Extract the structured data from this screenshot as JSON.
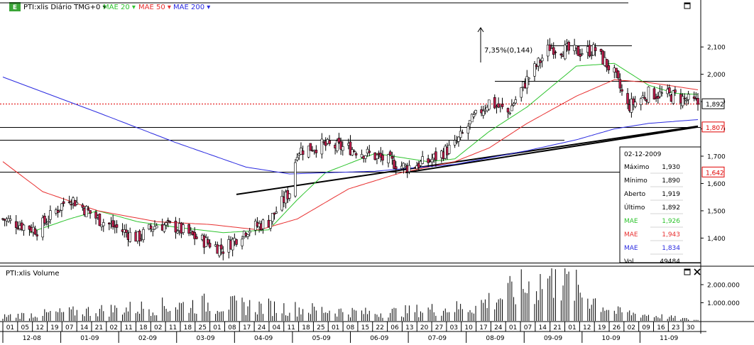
{
  "header": {
    "symbol_label": "PTI:xlis Diário TMG+0 ▾",
    "ma_labels": [
      {
        "text": "MAE 20 ▾",
        "color": "#2fc42f"
      },
      {
        "text": "MAE 50 ▾",
        "color": "#e83030"
      },
      {
        "text": "MAE 200 ▾",
        "color": "#2b2be0"
      }
    ]
  },
  "colors": {
    "candle_up": "#ffffff",
    "candle_down": "#c01c4c",
    "ma20": "#2fc42f",
    "ma50": "#e83030",
    "ma200": "#2b2be0",
    "last_price_line": "#e00000"
  },
  "price_axis": {
    "ticks": [
      "2,100",
      "2,000",
      "1,900",
      "1,800",
      "1,700",
      "1,600",
      "1,500",
      "1,400"
    ],
    "tick_values": [
      2.1,
      2.0,
      1.9,
      1.8,
      1.7,
      1.6,
      1.5,
      1.4
    ],
    "range": [
      1.31,
      2.22
    ],
    "last_price_label": "1,892",
    "level_labels": [
      {
        "text": "1,807",
        "value": 1.807
      },
      {
        "text": "1,642",
        "value": 1.642
      }
    ]
  },
  "annotation": {
    "text": "7,35%(0,144)"
  },
  "tooltip": {
    "date": "02-12-2009",
    "rows": [
      {
        "label": "Máximo",
        "value": "1,930",
        "color": "#000000"
      },
      {
        "label": "Mínimo",
        "value": "1,890",
        "color": "#000000"
      },
      {
        "label": "Aberto",
        "value": "1,919",
        "color": "#000000"
      },
      {
        "label": "Último",
        "value": "1,892",
        "color": "#000000"
      },
      {
        "label": "MAE",
        "value": "1,926",
        "color": "#2fc42f"
      },
      {
        "label": "MAE",
        "value": "1,943",
        "color": "#e83030"
      },
      {
        "label": "MAE",
        "value": "1,834",
        "color": "#2b2be0"
      },
      {
        "label": "Vol",
        "value": "49484",
        "color": "#000000"
      }
    ]
  },
  "volume_panel": {
    "title": "PTI:xlis Volume",
    "ticks": [
      "2.000.000",
      "1.000.000"
    ],
    "tick_values": [
      2000000,
      1000000
    ],
    "range": [
      0,
      2900000
    ]
  },
  "x_axis": {
    "day_labels": [
      "01",
      "05",
      "12",
      "19",
      "07",
      "14",
      "21",
      "02",
      "11",
      "18",
      "02",
      "11",
      "18",
      "25",
      "01",
      "08",
      "17",
      "24",
      "04",
      "11",
      "18",
      "25",
      "01",
      "08",
      "15",
      "22",
      "06",
      "13",
      "20",
      "27",
      "03",
      "10",
      "17",
      "24",
      "01",
      "07",
      "14",
      "21",
      "01",
      "12",
      "19",
      "26",
      "02",
      "09",
      "16",
      "23",
      "30"
    ],
    "month_labels": [
      "12-08",
      "01-09",
      "02-09",
      "03-09",
      "04-09",
      "05-09",
      "06-09",
      "07-09",
      "08-09",
      "09-09",
      "10-09",
      "11-09"
    ]
  },
  "chart_data": {
    "type": "candlestick",
    "title": "PTI:xlis Diário",
    "series_names": [
      "MAE 20",
      "MAE 50",
      "MAE 200"
    ],
    "period": {
      "start": "2008-12-01",
      "end": "2009-12-02"
    },
    "y_range": [
      1.31,
      2.22
    ],
    "last_close": 1.892,
    "levels": [
      2.105,
      1.975,
      1.892,
      1.807,
      1.76,
      1.642,
      1.31
    ],
    "trendline_1": {
      "from": [
        "2009-04-03",
        1.56
      ],
      "to": [
        "2009-12-02",
        1.81
      ]
    },
    "trendline_2": {
      "from": [
        "2009-07-01",
        1.64
      ],
      "to": [
        "2009-12-02",
        1.807
      ]
    },
    "price_keypoints": [
      [
        "2008-12-01",
        1.47
      ],
      [
        "2008-12-19",
        1.43
      ],
      [
        "2009-01-05",
        1.55
      ],
      [
        "2009-01-20",
        1.47
      ],
      [
        "2009-02-10",
        1.4
      ],
      [
        "2009-02-20",
        1.45
      ],
      [
        "2009-03-02",
        1.44
      ],
      [
        "2009-03-13",
        1.4
      ],
      [
        "2009-03-27",
        1.36
      ],
      [
        "2009-04-08",
        1.43
      ],
      [
        "2009-04-20",
        1.46
      ],
      [
        "2009-05-01",
        1.57
      ],
      [
        "2009-05-05",
        1.72
      ],
      [
        "2009-05-18",
        1.74
      ],
      [
        "2009-06-01",
        1.73
      ],
      [
        "2009-06-15",
        1.7
      ],
      [
        "2009-07-01",
        1.66
      ],
      [
        "2009-07-13",
        1.68
      ],
      [
        "2009-07-27",
        1.74
      ],
      [
        "2009-08-05",
        1.83
      ],
      [
        "2009-08-14",
        1.9
      ],
      [
        "2009-08-24",
        1.86
      ],
      [
        "2009-09-03",
        1.98
      ],
      [
        "2009-09-15",
        2.1
      ],
      [
        "2009-09-29",
        2.08
      ],
      [
        "2009-10-09",
        2.09
      ],
      [
        "2009-10-19",
        2.0
      ],
      [
        "2009-10-26",
        1.88
      ],
      [
        "2009-11-06",
        1.93
      ],
      [
        "2009-11-20",
        1.92
      ],
      [
        "2009-12-02",
        1.892
      ]
    ],
    "ma20_keypoints": [
      [
        "2008-12-15",
        1.42
      ],
      [
        "2009-01-05",
        1.47
      ],
      [
        "2009-01-20",
        1.5
      ],
      [
        "2009-02-10",
        1.46
      ],
      [
        "2009-03-02",
        1.44
      ],
      [
        "2009-03-27",
        1.42
      ],
      [
        "2009-04-20",
        1.43
      ],
      [
        "2009-05-05",
        1.54
      ],
      [
        "2009-05-20",
        1.64
      ],
      [
        "2009-06-15",
        1.71
      ],
      [
        "2009-07-13",
        1.68
      ],
      [
        "2009-07-27",
        1.69
      ],
      [
        "2009-08-14",
        1.79
      ],
      [
        "2009-09-03",
        1.88
      ],
      [
        "2009-09-29",
        2.03
      ],
      [
        "2009-10-19",
        2.04
      ],
      [
        "2009-11-06",
        1.96
      ],
      [
        "2009-11-20",
        1.93
      ],
      [
        "2009-12-02",
        1.926
      ]
    ],
    "ma50_keypoints": [
      [
        "2008-12-01",
        1.68
      ],
      [
        "2008-12-22",
        1.57
      ],
      [
        "2009-01-20",
        1.5
      ],
      [
        "2009-02-20",
        1.46
      ],
      [
        "2009-03-20",
        1.45
      ],
      [
        "2009-04-15",
        1.43
      ],
      [
        "2009-05-05",
        1.47
      ],
      [
        "2009-06-01",
        1.58
      ],
      [
        "2009-06-29",
        1.64
      ],
      [
        "2009-07-27",
        1.68
      ],
      [
        "2009-08-14",
        1.73
      ],
      [
        "2009-09-03",
        1.82
      ],
      [
        "2009-09-29",
        1.92
      ],
      [
        "2009-10-19",
        1.98
      ],
      [
        "2009-11-06",
        1.97
      ],
      [
        "2009-12-02",
        1.943
      ]
    ],
    "ma200_keypoints": [
      [
        "2008-12-01",
        1.99
      ],
      [
        "2009-01-20",
        1.86
      ],
      [
        "2009-03-02",
        1.75
      ],
      [
        "2009-04-08",
        1.66
      ],
      [
        "2009-05-01",
        1.635
      ],
      [
        "2009-06-15",
        1.645
      ],
      [
        "2009-07-27",
        1.67
      ],
      [
        "2009-09-03",
        1.72
      ],
      [
        "2009-09-29",
        1.76
      ],
      [
        "2009-10-19",
        1.8
      ],
      [
        "2009-11-06",
        1.82
      ],
      [
        "2009-12-02",
        1.834
      ]
    ],
    "volume_keypoints": [
      [
        "2008-12-01",
        300000
      ],
      [
        "2009-03-17",
        1100000
      ],
      [
        "2009-04-20",
        900000
      ],
      [
        "2009-06-15",
        500000
      ],
      [
        "2009-08-05",
        900000
      ],
      [
        "2009-09-18",
        2850000
      ],
      [
        "2009-10-19",
        600000
      ],
      [
        "2009-12-02",
        49484
      ]
    ]
  }
}
